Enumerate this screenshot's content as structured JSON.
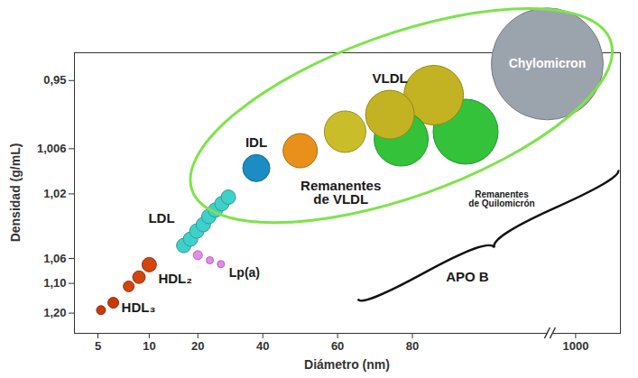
{
  "chart_data": {
    "type": "bubble",
    "x_label": "Diámetro (nm)",
    "y_label": "Densidad (g/mL)",
    "xlim": [
      3,
      1200
    ],
    "xticks": [
      5,
      10,
      20,
      40,
      60,
      80,
      1000
    ],
    "ylim": [
      0.93,
      1.23
    ],
    "yticks": [
      {
        "value": 0.95,
        "label": "0,95"
      },
      {
        "value": 1.006,
        "label": "1,006"
      },
      {
        "value": 1.02,
        "label": "1,02"
      },
      {
        "value": 1.06,
        "label": "1,06"
      },
      {
        "value": 1.1,
        "label": "1,10"
      },
      {
        "value": 1.2,
        "label": "1,20"
      }
    ],
    "series": [
      {
        "name": "HDL₃",
        "color": "#c8390c",
        "x": [
          5.3,
          6.5
        ],
        "values": [
          1.19,
          1.165
        ],
        "sizes": [
          5,
          6
        ]
      },
      {
        "name": "HDL₂",
        "color": "#d2450f",
        "x": [
          8,
          9,
          10
        ],
        "values": [
          1.11,
          1.09,
          1.07
        ],
        "sizes": [
          6,
          7,
          8
        ]
      },
      {
        "name": "LDL",
        "color": "#3fd0c9",
        "x": [
          17.1,
          18.5,
          19.8,
          21.7,
          23.4,
          25.4,
          27.4,
          29.4
        ],
        "values": [
          1.052,
          1.048,
          1.043,
          1.039,
          1.034,
          1.03,
          1.026,
          1.022
        ],
        "sizes": [
          8,
          8,
          8,
          8,
          8,
          8,
          8,
          8
        ]
      },
      {
        "name": "Lp(a)",
        "color": "#e58ae8",
        "x": [
          20,
          23.7,
          27.1
        ],
        "values": [
          1.058,
          1.063,
          1.069
        ],
        "sizes": [
          5,
          4,
          4
        ]
      },
      {
        "name": "IDL",
        "color": "#1b8cc4",
        "x": [
          38
        ],
        "values": [
          1.012
        ],
        "sizes": [
          15
        ]
      },
      {
        "name": "Remanentes de VLDL",
        "colors": [
          "#e8901a",
          "#c9bd2a"
        ],
        "x": [
          50,
          62
        ],
        "values": [
          1.0066,
          0.992
        ],
        "sizes": [
          19,
          23
        ]
      },
      {
        "name": "VLDL",
        "color": "#c3b322",
        "x": [
          74,
          200
        ],
        "values": [
          0.978,
          0.962
        ],
        "sizes": [
          27,
          33
        ]
      },
      {
        "name": "Remanentes de Quilomicrón",
        "color": "#33c23a",
        "x": [
          77,
          380
        ],
        "values": [
          0.998,
          0.992
        ],
        "sizes": [
          30,
          36
        ]
      },
      {
        "name": "Chylomicron",
        "color": "#9ba4ac",
        "x": [
          840
        ],
        "values": [
          0.938
        ],
        "sizes": [
          62
        ]
      }
    ],
    "annotations": [
      "APO B"
    ]
  }
}
